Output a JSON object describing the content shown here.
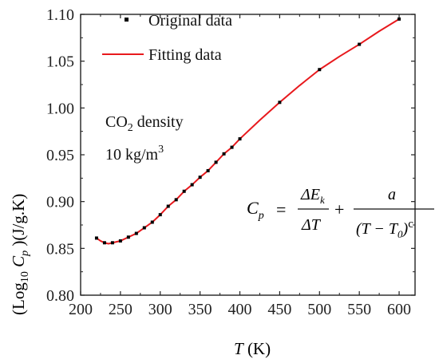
{
  "chart_data": {
    "type": "scatter",
    "x_ticks": [
      200,
      250,
      300,
      350,
      400,
      450,
      500,
      550,
      600
    ],
    "y_ticks": [
      "0.80",
      "0.85",
      "0.90",
      "0.95",
      "1.00",
      "1.05",
      "1.10"
    ],
    "xlim": [
      200,
      620
    ],
    "ylim": [
      0.8,
      1.1
    ],
    "grid": false,
    "legend_placement": "top-left",
    "xlabel": {
      "symbol": "T",
      "unit": " (K)"
    },
    "ylabel": {
      "open": "(Log",
      "sub": "10",
      "symbol": " C",
      "subscript": "p",
      "close": " )(J/g.K)"
    },
    "annotation": {
      "line1_prefix": "CO",
      "line1_sub": "2",
      "line1_suffix": " density",
      "line2_prefix": "10  kg/m",
      "line2_sup": "3"
    },
    "formula": {
      "lhs": "C",
      "lhs_sub": "p",
      "eq": "=",
      "num1": "ΔE",
      "num1_sub": "k",
      "den1": "ΔT",
      "plus": "+",
      "num2": "a",
      "den2_open": "(T − T",
      "den2_sub": "0",
      "den2_close": ")",
      "den2_exp": "c"
    },
    "series": [
      {
        "name": "Original data",
        "marker": "square",
        "color": "#000000",
        "x": [
          220,
          230,
          240,
          250,
          260,
          270,
          280,
          290,
          300,
          310,
          320,
          330,
          340,
          350,
          360,
          370,
          380,
          390,
          400,
          450,
          500,
          550,
          600
        ],
        "y": [
          0.861,
          0.856,
          0.856,
          0.858,
          0.862,
          0.866,
          0.872,
          0.878,
          0.886,
          0.895,
          0.902,
          0.911,
          0.918,
          0.926,
          0.933,
          0.942,
          0.951,
          0.958,
          0.967,
          1.006,
          1.041,
          1.068,
          1.095
        ]
      },
      {
        "name": "Fitting data",
        "line": true,
        "color": "#e8191d",
        "x": [
          220,
          225,
          230,
          235,
          240,
          245,
          250,
          260,
          270,
          280,
          290,
          300,
          310,
          320,
          330,
          340,
          350,
          360,
          370,
          380,
          390,
          400,
          425,
          450,
          475,
          500,
          525,
          550,
          575,
          600
        ],
        "y": [
          0.861,
          0.858,
          0.856,
          0.855,
          0.856,
          0.857,
          0.858,
          0.862,
          0.866,
          0.872,
          0.878,
          0.886,
          0.895,
          0.902,
          0.911,
          0.918,
          0.926,
          0.933,
          0.942,
          0.951,
          0.958,
          0.967,
          0.987,
          1.006,
          1.024,
          1.041,
          1.055,
          1.068,
          1.082,
          1.095
        ]
      }
    ]
  }
}
